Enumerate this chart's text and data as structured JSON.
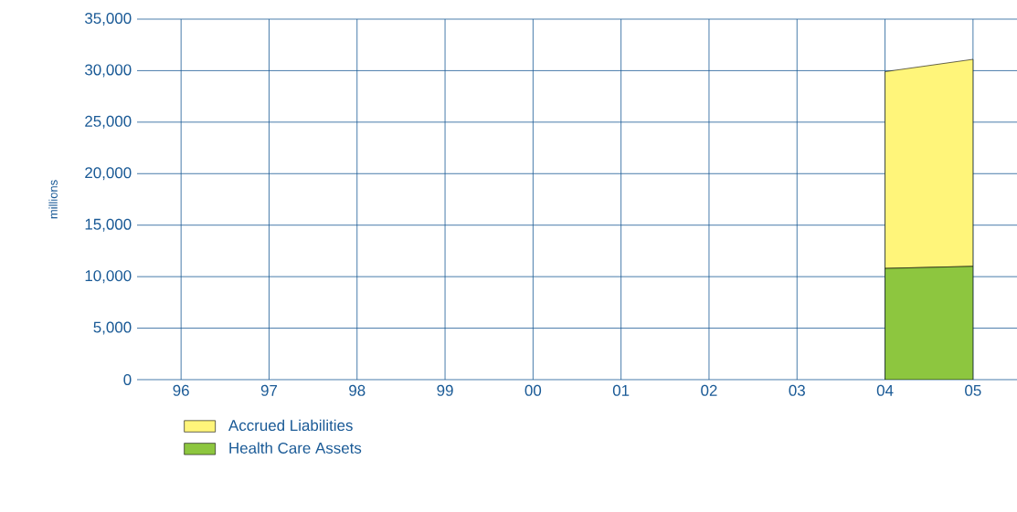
{
  "chart_data": {
    "type": "area",
    "stacked": true,
    "ylabel": "millions",
    "categories": [
      "96",
      "97",
      "98",
      "99",
      "00",
      "01",
      "02",
      "03",
      "04",
      "05"
    ],
    "series": [
      {
        "name": "Health Care Assets",
        "color": "#8dc63f",
        "values": [
          null,
          null,
          null,
          null,
          null,
          null,
          null,
          null,
          10800,
          11000
        ]
      },
      {
        "name": "Accrued Liabilities",
        "color": "#fff57a",
        "values": [
          null,
          null,
          null,
          null,
          null,
          null,
          null,
          null,
          19100,
          20100
        ]
      }
    ],
    "ylim": [
      0,
      35000
    ],
    "yticks": [
      {
        "value": 0,
        "label": "0"
      },
      {
        "value": 5000,
        "label": "5,000"
      },
      {
        "value": 10000,
        "label": "10,000"
      },
      {
        "value": 15000,
        "label": "15,000"
      },
      {
        "value": 20000,
        "label": "20,000"
      },
      {
        "value": 25000,
        "label": "25,000"
      },
      {
        "value": 30000,
        "label": "30,000"
      },
      {
        "value": 35000,
        "label": "35,000"
      }
    ],
    "grid": true,
    "legend": "bottom"
  }
}
